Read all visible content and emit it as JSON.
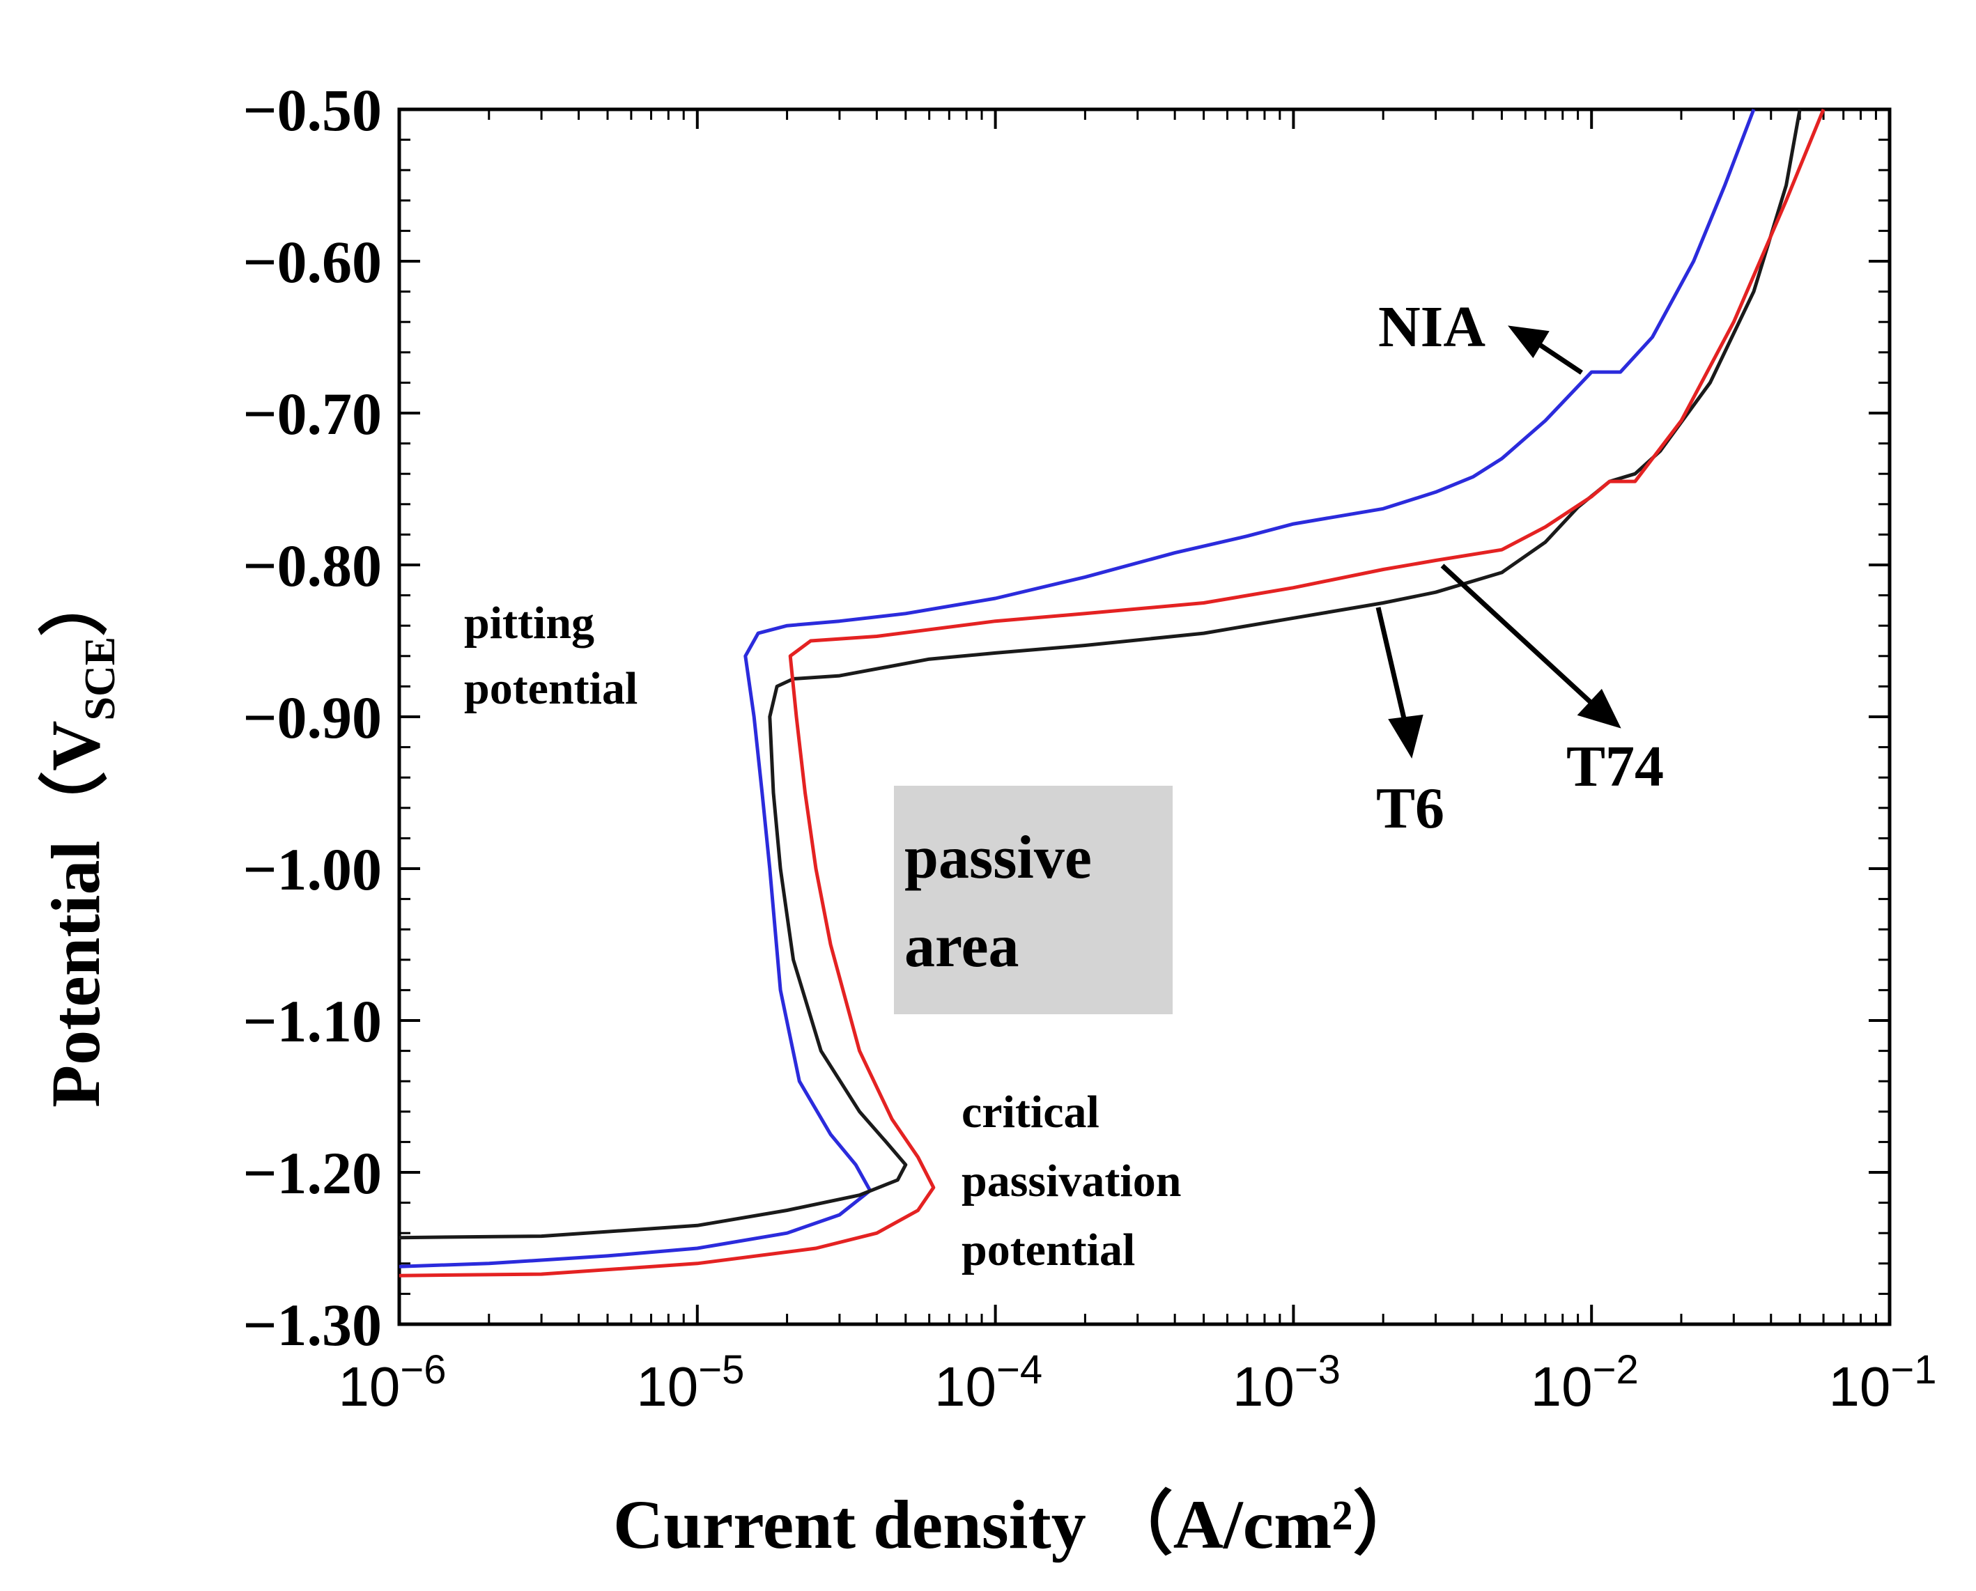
{
  "chart_data": {
    "type": "line",
    "title": "",
    "xlabel": "Current density （A/cm²）",
    "ylabel_main": "Potential（V",
    "ylabel_sub": "SCE",
    "ylabel_close": "）",
    "xscale": "log",
    "xlim": [
      1e-06,
      0.1
    ],
    "ylim": [
      -1.3,
      -0.5
    ],
    "grid": false,
    "y_ticks": [
      {
        "value": -0.5,
        "label": "−0.50"
      },
      {
        "value": -0.6,
        "label": "−0.60"
      },
      {
        "value": -0.7,
        "label": "−0.70"
      },
      {
        "value": -0.8,
        "label": "−0.80"
      },
      {
        "value": -0.9,
        "label": "−0.90"
      },
      {
        "value": -1.0,
        "label": "−1.00"
      },
      {
        "value": -1.1,
        "label": "−1.10"
      },
      {
        "value": -1.2,
        "label": "−1.20"
      },
      {
        "value": -1.3,
        "label": "−1.30"
      }
    ],
    "x_ticks": [
      {
        "value": 1e-06,
        "base": "10",
        "exp": "−6"
      },
      {
        "value": 1e-05,
        "base": "10",
        "exp": "−5"
      },
      {
        "value": 0.0001,
        "base": "10",
        "exp": "−4"
      },
      {
        "value": 0.001,
        "base": "10",
        "exp": "−3"
      },
      {
        "value": 0.01,
        "base": "10",
        "exp": "−2"
      },
      {
        "value": 0.1,
        "base": "10",
        "exp": "−1"
      }
    ],
    "series": [
      {
        "name": "NIA",
        "color": "#2b2bdc",
        "points": [
          [
            1e-06,
            -1.262
          ],
          [
            2e-06,
            -1.26
          ],
          [
            5e-06,
            -1.255
          ],
          [
            1e-05,
            -1.25
          ],
          [
            2e-05,
            -1.24
          ],
          [
            3e-05,
            -1.228
          ],
          [
            3.8e-05,
            -1.212
          ],
          [
            3.4e-05,
            -1.195
          ],
          [
            2.8e-05,
            -1.175
          ],
          [
            2.2e-05,
            -1.14
          ],
          [
            1.9e-05,
            -1.08
          ],
          [
            1.75e-05,
            -1.0
          ],
          [
            1.65e-05,
            -0.95
          ],
          [
            1.55e-05,
            -0.9
          ],
          [
            1.45e-05,
            -0.86
          ],
          [
            1.6e-05,
            -0.845
          ],
          [
            2e-05,
            -0.84
          ],
          [
            3e-05,
            -0.837
          ],
          [
            5e-05,
            -0.832
          ],
          [
            0.0001,
            -0.822
          ],
          [
            0.0002,
            -0.808
          ],
          [
            0.0004,
            -0.792
          ],
          [
            0.0007,
            -0.781
          ],
          [
            0.001,
            -0.773
          ],
          [
            0.002,
            -0.763
          ],
          [
            0.003,
            -0.752
          ],
          [
            0.004,
            -0.742
          ],
          [
            0.005,
            -0.73
          ],
          [
            0.007,
            -0.705
          ],
          [
            0.01,
            -0.673
          ],
          [
            0.0125,
            -0.673
          ],
          [
            0.016,
            -0.65
          ],
          [
            0.022,
            -0.6
          ],
          [
            0.028,
            -0.55
          ],
          [
            0.035,
            -0.5
          ]
        ]
      },
      {
        "name": "T6",
        "color": "#1a1a1a",
        "points": [
          [
            1e-06,
            -1.243
          ],
          [
            3e-06,
            -1.242
          ],
          [
            1e-05,
            -1.235
          ],
          [
            2e-05,
            -1.225
          ],
          [
            3.5e-05,
            -1.215
          ],
          [
            4.7e-05,
            -1.205
          ],
          [
            5e-05,
            -1.195
          ],
          [
            4.3e-05,
            -1.18
          ],
          [
            3.5e-05,
            -1.16
          ],
          [
            2.6e-05,
            -1.12
          ],
          [
            2.1e-05,
            -1.06
          ],
          [
            1.9e-05,
            -1.0
          ],
          [
            1.8e-05,
            -0.95
          ],
          [
            1.75e-05,
            -0.9
          ],
          [
            1.85e-05,
            -0.88
          ],
          [
            2.1e-05,
            -0.875
          ],
          [
            3e-05,
            -0.873
          ],
          [
            6e-05,
            -0.862
          ],
          [
            0.0001,
            -0.858
          ],
          [
            0.0002,
            -0.853
          ],
          [
            0.0005,
            -0.845
          ],
          [
            0.001,
            -0.835
          ],
          [
            0.002,
            -0.825
          ],
          [
            0.003,
            -0.818
          ],
          [
            0.005,
            -0.805
          ],
          [
            0.007,
            -0.785
          ],
          [
            0.009,
            -0.762
          ],
          [
            0.0115,
            -0.745
          ],
          [
            0.014,
            -0.74
          ],
          [
            0.017,
            -0.725
          ],
          [
            0.025,
            -0.68
          ],
          [
            0.035,
            -0.62
          ],
          [
            0.045,
            -0.55
          ],
          [
            0.05,
            -0.5
          ]
        ]
      },
      {
        "name": "T74",
        "color": "#e42222",
        "points": [
          [
            1e-06,
            -1.268
          ],
          [
            3e-06,
            -1.267
          ],
          [
            1e-05,
            -1.26
          ],
          [
            2.5e-05,
            -1.25
          ],
          [
            4e-05,
            -1.24
          ],
          [
            5.5e-05,
            -1.225
          ],
          [
            6.2e-05,
            -1.21
          ],
          [
            5.5e-05,
            -1.19
          ],
          [
            4.5e-05,
            -1.165
          ],
          [
            3.5e-05,
            -1.12
          ],
          [
            2.8e-05,
            -1.05
          ],
          [
            2.5e-05,
            -1.0
          ],
          [
            2.3e-05,
            -0.95
          ],
          [
            2.15e-05,
            -0.9
          ],
          [
            2.05e-05,
            -0.86
          ],
          [
            2.4e-05,
            -0.85
          ],
          [
            4e-05,
            -0.847
          ],
          [
            0.0001,
            -0.837
          ],
          [
            0.0002,
            -0.832
          ],
          [
            0.0005,
            -0.825
          ],
          [
            0.001,
            -0.815
          ],
          [
            0.002,
            -0.803
          ],
          [
            0.003,
            -0.797
          ],
          [
            0.005,
            -0.79
          ],
          [
            0.007,
            -0.775
          ],
          [
            0.01,
            -0.755
          ],
          [
            0.0115,
            -0.745
          ],
          [
            0.014,
            -0.745
          ],
          [
            0.02,
            -0.705
          ],
          [
            0.03,
            -0.64
          ],
          [
            0.045,
            -0.56
          ],
          [
            0.06,
            -0.5
          ]
        ]
      }
    ],
    "annotations": {
      "nia_label": "NIA",
      "t6_label": "T6",
      "t74_label": "T74",
      "pitting_line1": "pitting",
      "pitting_line2": "potential",
      "passive_line1": "passive",
      "passive_line2": "area",
      "critical_line1": "critical",
      "critical_line2": "passivation",
      "critical_line3": "potential",
      "passive_box_color": "#d4d4d4"
    }
  }
}
